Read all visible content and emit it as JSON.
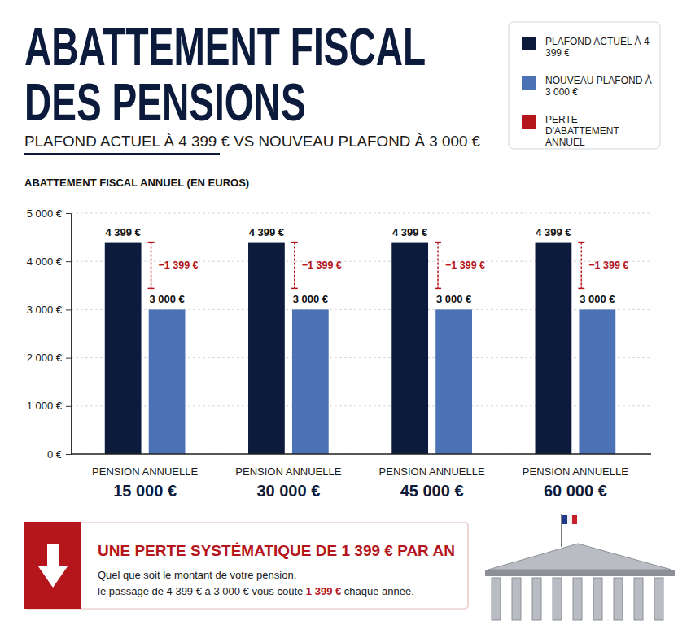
{
  "chart_data": {
    "type": "bar",
    "title": "ABATTEMENT FISCAL DES PENSIONS",
    "subtitle": "PLAFOND ACTUEL À 4 399 € VS NOUVEAU PLAFOND À 3 000 €",
    "y_label": "ABATTEMENT FISCAL ANNUEL (EN EUROS)",
    "categories": [
      "PENSION ANNUELLE\n15 000 €",
      "PENSION ANNUELLE\n30 000 €",
      "PENSION ANNUELLE\n45 000 €",
      "PENSION ANNUELLE\n60 000 €"
    ],
    "series": [
      {
        "name": "PLAFOND ACTUEL À 4 399 €",
        "color": "#0c1b3c",
        "values": [
          4399,
          4399,
          4399,
          4399
        ],
        "value_labels": [
          "4 399 €",
          "4 399 €",
          "4 399 €",
          "4 399 €"
        ]
      },
      {
        "name": "NOUVEAU PLAFOND À 3 000 €",
        "color": "#4a72b4",
        "values": [
          3000,
          3000,
          3000,
          3000
        ],
        "value_labels": [
          "3 000 €",
          "3 000 €",
          "3 000 €",
          "3 000 €"
        ]
      }
    ],
    "differences": {
      "name": "PERTE D'ABATTEMENT ANNUEL",
      "color": "#b5161c",
      "values": [
        -1399,
        -1399,
        -1399,
        -1399
      ],
      "value_labels": [
        "−1 399 €",
        "−1 399 €",
        "−1 399 €",
        "−1 399 €"
      ]
    },
    "ylim": [
      0,
      5000
    ],
    "yticks": [
      {
        "value": 0,
        "label": "0 €"
      },
      {
        "value": 1000,
        "label": "1 000 €"
      },
      {
        "value": 2000,
        "label": "2 000 €"
      },
      {
        "value": 3000,
        "label": "3 000 €"
      },
      {
        "value": 4000,
        "label": "4 000 €"
      },
      {
        "value": 5000,
        "label": "5 000 €"
      }
    ],
    "grid": true,
    "legend": "top-right",
    "data_labels": true,
    "callout": {
      "title": "UNE PERTE SYSTÉMATIQUE DE 1 399 € PAR AN",
      "lines": [
        [
          "Quel que soit le montant de votre pension,"
        ],
        [
          "le passage de 4 399 € à 3 000 € vous coûte",
          "1 399 €",
          "chaque année."
        ]
      ]
    }
  }
}
